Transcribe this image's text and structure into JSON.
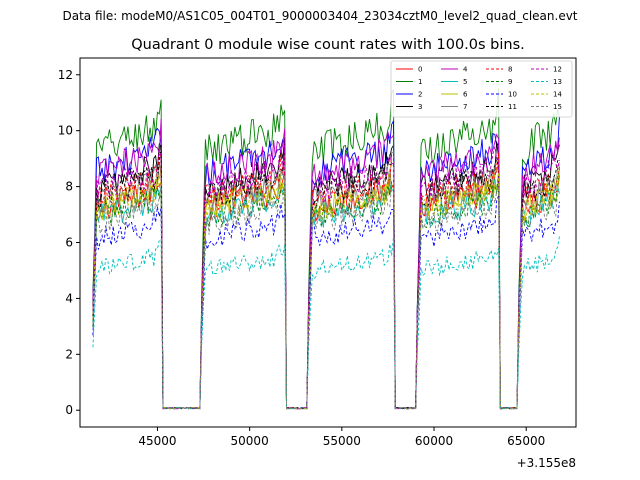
{
  "suptitle": "Data file: modeM0/AS1C05_004T01_9000003404_23034cztM0_level2_quad_clean.evt",
  "chart_data": {
    "type": "line",
    "title": "Quadrant 0 module wise count rates with 100.0s bins.",
    "xlabel": "",
    "ylabel": "",
    "x_offset_label": "+3.155e8",
    "xlim": [
      40800,
      67700
    ],
    "ylim": [
      -0.6,
      12.6
    ],
    "x_ticks": [
      45000,
      50000,
      55000,
      60000,
      65000
    ],
    "x_tick_labels": [
      "45000",
      "50000",
      "55000",
      "60000",
      "65000"
    ],
    "y_ticks": [
      0,
      2,
      4,
      6,
      8,
      10,
      12
    ],
    "y_tick_labels": [
      "0",
      "2",
      "4",
      "6",
      "8",
      "10",
      "12"
    ],
    "grid": false,
    "legend_position": "top-right",
    "bin_seconds": 100,
    "on_segments": [
      [
        41500,
        45200
      ],
      [
        47400,
        51900
      ],
      [
        53200,
        57800
      ],
      [
        59100,
        63500
      ],
      [
        64600,
        66800
      ]
    ],
    "series": [
      {
        "name": "0",
        "color": "#ff0000",
        "dash": "solid",
        "level": 7.6
      },
      {
        "name": "1",
        "color": "#008000",
        "dash": "solid",
        "level": 9.8
      },
      {
        "name": "2",
        "color": "#0000ff",
        "dash": "solid",
        "level": 9.0
      },
      {
        "name": "3",
        "color": "#000000",
        "dash": "solid",
        "level": 8.4
      },
      {
        "name": "4",
        "color": "#bf00bf",
        "dash": "solid",
        "level": 8.9
      },
      {
        "name": "5",
        "color": "#00bfbf",
        "dash": "solid",
        "level": 7.3
      },
      {
        "name": "6",
        "color": "#bfbf00",
        "dash": "solid",
        "level": 7.6
      },
      {
        "name": "7",
        "color": "#808080",
        "dash": "solid",
        "level": 7.9
      },
      {
        "name": "8",
        "color": "#ff0000",
        "dash": "dashed",
        "level": 8.0
      },
      {
        "name": "9",
        "color": "#008000",
        "dash": "dashed",
        "level": 7.3
      },
      {
        "name": "10",
        "color": "#0000ff",
        "dash": "dashed",
        "level": 6.5
      },
      {
        "name": "11",
        "color": "#000000",
        "dash": "dashed",
        "level": 8.1
      },
      {
        "name": "12",
        "color": "#bf00bf",
        "dash": "dashed",
        "level": 8.3
      },
      {
        "name": "13",
        "color": "#00bfbf",
        "dash": "dashed",
        "level": 5.3
      },
      {
        "name": "14",
        "color": "#bfbf00",
        "dash": "dashed",
        "level": 7.6
      },
      {
        "name": "15",
        "color": "#808080",
        "dash": "dashed",
        "level": 7.1
      }
    ]
  }
}
